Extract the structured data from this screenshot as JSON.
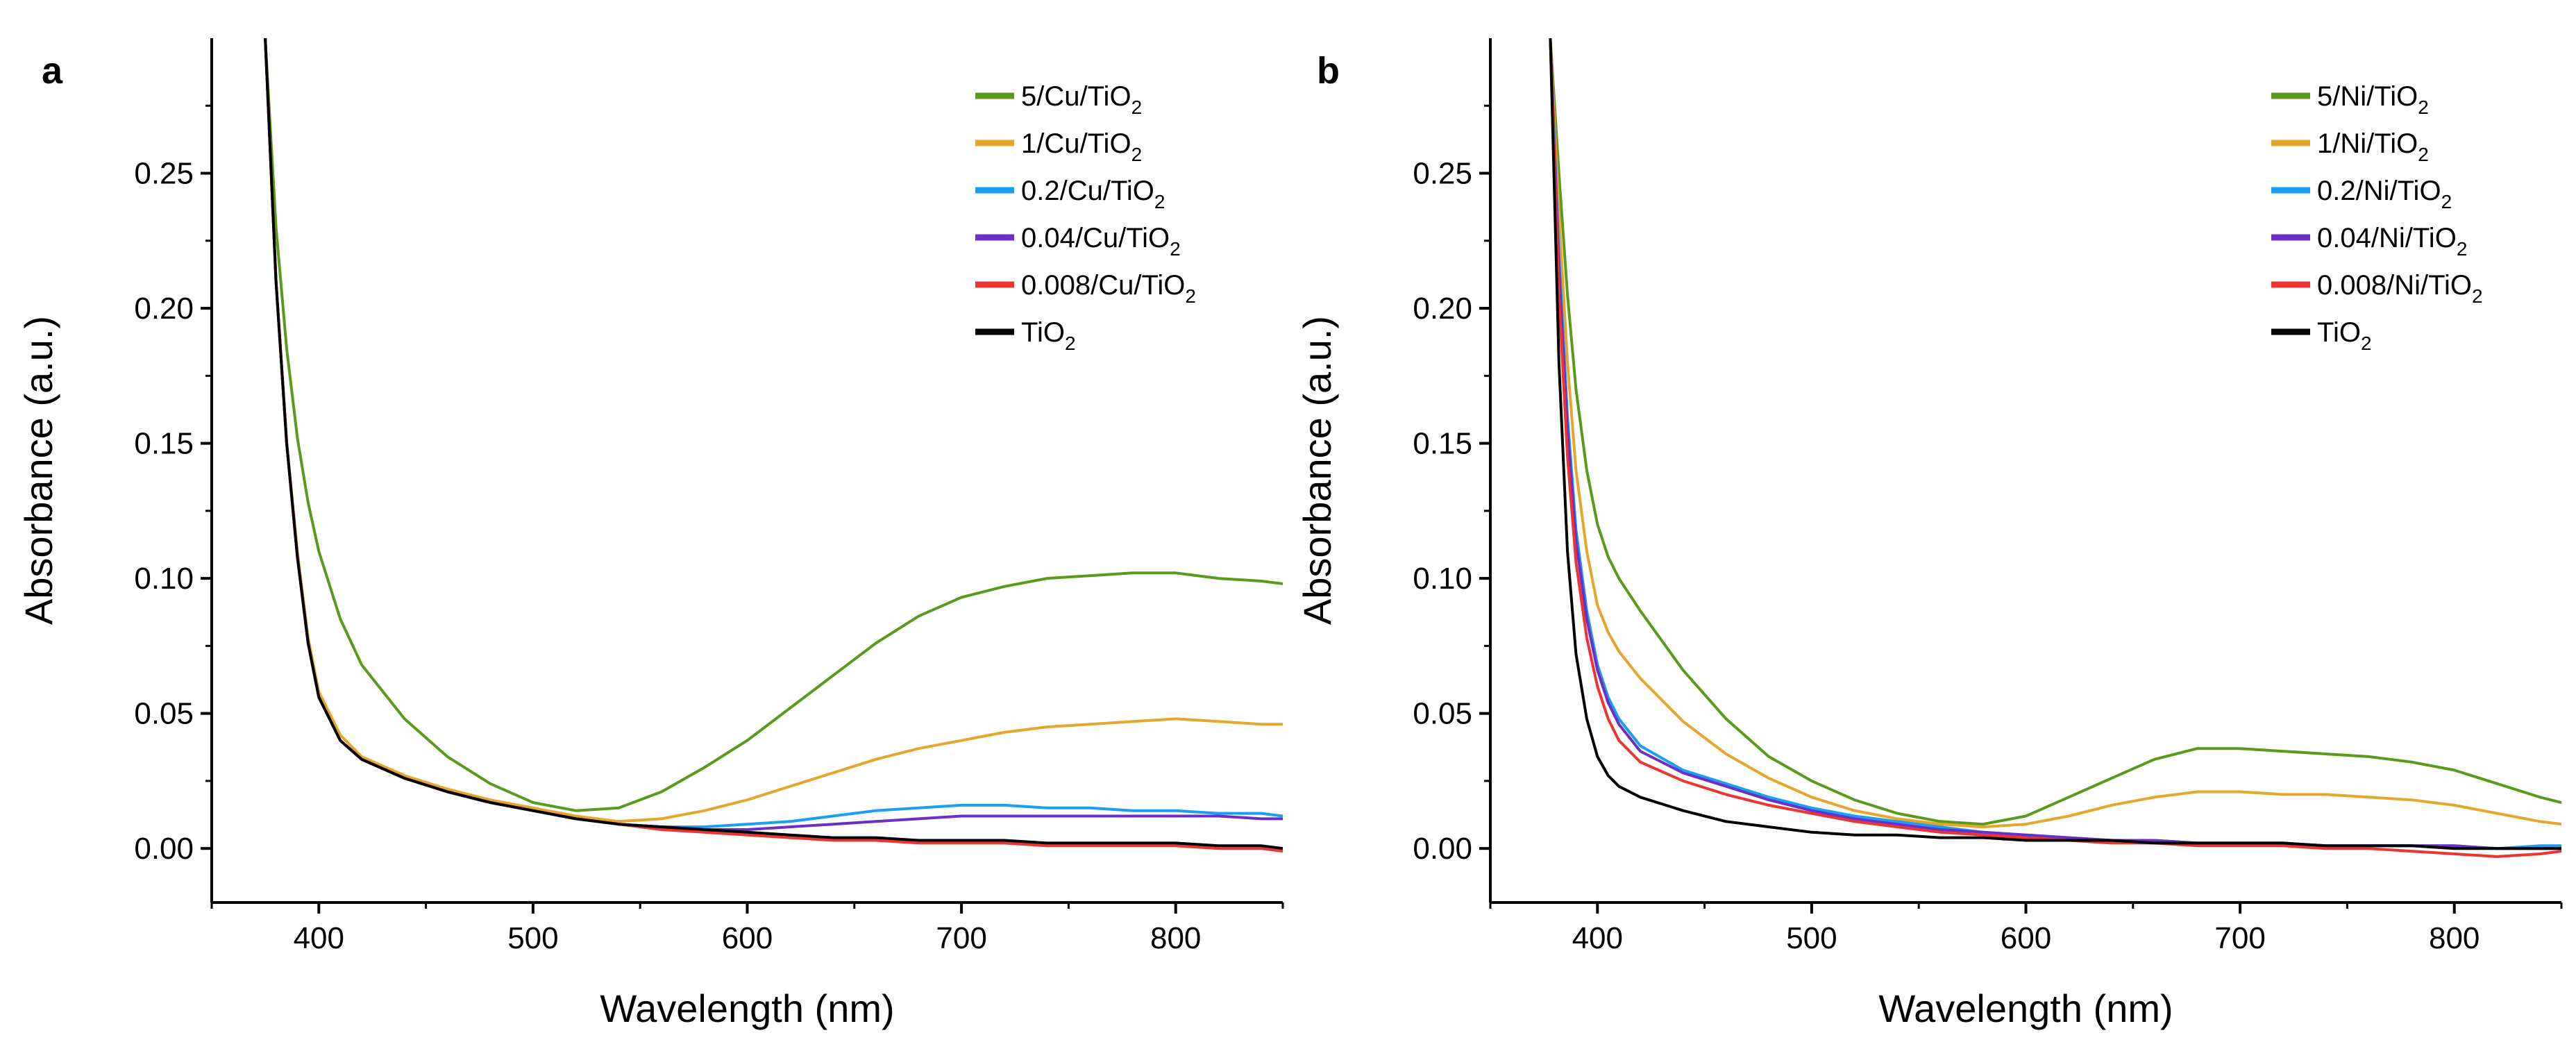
{
  "chart_data": [
    {
      "panel_label": "a",
      "type": "line",
      "xlabel": "Wavelength (nm)",
      "ylabel": "Absorbance (a.u.)",
      "xlim": [
        350,
        850
      ],
      "ylim": [
        -0.02,
        0.3
      ],
      "xticks": [
        400,
        500,
        600,
        700,
        800
      ],
      "xtick_labels": [
        "400",
        "500",
        "600",
        "700",
        "800"
      ],
      "yticks": [
        0.0,
        0.05,
        0.1,
        0.15,
        0.2,
        0.25
      ],
      "ytick_labels": [
        "0.00",
        "0.05",
        "0.10",
        "0.15",
        "0.20",
        "0.25"
      ],
      "legend_position": "top-right",
      "series": [
        {
          "name": "5/Cu/TiO2",
          "label_main": "5/Cu/TiO",
          "label_sub": "2",
          "color": "#5a9a1a",
          "x": [
            375,
            380,
            385,
            390,
            395,
            400,
            410,
            420,
            440,
            460,
            480,
            500,
            520,
            540,
            560,
            580,
            600,
            620,
            640,
            660,
            680,
            700,
            720,
            740,
            760,
            780,
            800,
            820,
            840,
            850
          ],
          "y": [
            0.3,
            0.23,
            0.185,
            0.152,
            0.128,
            0.11,
            0.085,
            0.068,
            0.048,
            0.034,
            0.024,
            0.017,
            0.014,
            0.015,
            0.021,
            0.03,
            0.04,
            0.052,
            0.064,
            0.076,
            0.086,
            0.093,
            0.097,
            0.1,
            0.101,
            0.102,
            0.102,
            0.1,
            0.099,
            0.098
          ]
        },
        {
          "name": "1/Cu/TiO2",
          "label_main": "1/Cu/TiO",
          "label_sub": "2",
          "color": "#e6a62c",
          "x": [
            375,
            380,
            385,
            390,
            395,
            400,
            410,
            420,
            440,
            460,
            480,
            500,
            520,
            540,
            560,
            580,
            600,
            620,
            640,
            660,
            680,
            700,
            720,
            740,
            760,
            780,
            800,
            820,
            840,
            850
          ],
          "y": [
            0.3,
            0.21,
            0.15,
            0.11,
            0.078,
            0.058,
            0.042,
            0.034,
            0.027,
            0.022,
            0.018,
            0.015,
            0.012,
            0.01,
            0.011,
            0.014,
            0.018,
            0.023,
            0.028,
            0.033,
            0.037,
            0.04,
            0.043,
            0.045,
            0.046,
            0.047,
            0.048,
            0.047,
            0.046,
            0.046
          ]
        },
        {
          "name": "0.2/Cu/TiO2",
          "label_main": "0.2/Cu/TiO",
          "label_sub": "2",
          "color": "#1a9ef0",
          "x": [
            375,
            380,
            385,
            390,
            395,
            400,
            410,
            420,
            440,
            460,
            480,
            500,
            520,
            540,
            560,
            580,
            600,
            620,
            640,
            660,
            680,
            700,
            720,
            740,
            760,
            780,
            800,
            820,
            840,
            850
          ],
          "y": [
            0.3,
            0.21,
            0.15,
            0.108,
            0.076,
            0.056,
            0.04,
            0.033,
            0.026,
            0.021,
            0.017,
            0.014,
            0.011,
            0.009,
            0.008,
            0.008,
            0.009,
            0.01,
            0.012,
            0.014,
            0.015,
            0.016,
            0.016,
            0.015,
            0.015,
            0.014,
            0.014,
            0.013,
            0.013,
            0.012
          ]
        },
        {
          "name": "0.04/Cu/TiO2",
          "label_main": "0.04/Cu/TiO",
          "label_sub": "2",
          "color": "#6b2fc8",
          "x": [
            375,
            380,
            385,
            390,
            395,
            400,
            410,
            420,
            440,
            460,
            480,
            500,
            520,
            540,
            560,
            580,
            600,
            620,
            640,
            660,
            680,
            700,
            720,
            740,
            760,
            780,
            800,
            820,
            840,
            850
          ],
          "y": [
            0.3,
            0.21,
            0.15,
            0.108,
            0.076,
            0.056,
            0.04,
            0.033,
            0.026,
            0.021,
            0.017,
            0.014,
            0.011,
            0.009,
            0.008,
            0.007,
            0.007,
            0.008,
            0.009,
            0.01,
            0.011,
            0.012,
            0.012,
            0.012,
            0.012,
            0.012,
            0.012,
            0.012,
            0.011,
            0.011
          ]
        },
        {
          "name": "0.008/Cu/TiO2",
          "label_main": "0.008/Cu/TiO",
          "label_sub": "2",
          "color": "#ee3333",
          "x": [
            375,
            380,
            385,
            390,
            395,
            400,
            410,
            420,
            440,
            460,
            480,
            500,
            520,
            540,
            560,
            580,
            600,
            620,
            640,
            660,
            680,
            700,
            720,
            740,
            760,
            780,
            800,
            820,
            840,
            850
          ],
          "y": [
            0.3,
            0.21,
            0.15,
            0.108,
            0.076,
            0.056,
            0.04,
            0.033,
            0.026,
            0.021,
            0.017,
            0.014,
            0.011,
            0.009,
            0.007,
            0.006,
            0.005,
            0.004,
            0.003,
            0.003,
            0.002,
            0.002,
            0.002,
            0.001,
            0.001,
            0.001,
            0.001,
            0.0,
            0.0,
            -0.001
          ]
        },
        {
          "name": "TiO2",
          "label_main": "TiO",
          "label_sub": "2",
          "color": "#000000",
          "x": [
            375,
            380,
            385,
            390,
            395,
            400,
            410,
            420,
            440,
            460,
            480,
            500,
            520,
            540,
            560,
            580,
            600,
            620,
            640,
            660,
            680,
            700,
            720,
            740,
            760,
            780,
            800,
            820,
            840,
            850
          ],
          "y": [
            0.3,
            0.21,
            0.15,
            0.108,
            0.076,
            0.056,
            0.04,
            0.033,
            0.026,
            0.021,
            0.017,
            0.014,
            0.011,
            0.009,
            0.008,
            0.007,
            0.006,
            0.005,
            0.004,
            0.004,
            0.003,
            0.003,
            0.003,
            0.002,
            0.002,
            0.002,
            0.002,
            0.001,
            0.001,
            0.0
          ]
        }
      ]
    },
    {
      "panel_label": "b",
      "type": "line",
      "xlabel": "Wavelength (nm)",
      "ylabel": "Absorbance (a.u.)",
      "xlim": [
        350,
        850
      ],
      "ylim": [
        -0.02,
        0.3
      ],
      "xticks": [
        400,
        500,
        600,
        700,
        800
      ],
      "xtick_labels": [
        "400",
        "500",
        "600",
        "700",
        "800"
      ],
      "yticks": [
        0.0,
        0.05,
        0.1,
        0.15,
        0.2,
        0.25
      ],
      "ytick_labels": [
        "0.00",
        "0.05",
        "0.10",
        "0.15",
        "0.20",
        "0.25"
      ],
      "legend_position": "top-right",
      "series": [
        {
          "name": "5/Ni/TiO2",
          "label_main": "5/Ni/TiO",
          "label_sub": "2",
          "color": "#5a9a1a",
          "x": [
            378,
            382,
            386,
            390,
            395,
            400,
            405,
            410,
            420,
            440,
            460,
            480,
            500,
            520,
            540,
            560,
            580,
            600,
            620,
            640,
            660,
            680,
            700,
            720,
            740,
            760,
            780,
            800,
            820,
            840,
            850
          ],
          "y": [
            0.3,
            0.25,
            0.205,
            0.17,
            0.14,
            0.12,
            0.108,
            0.1,
            0.088,
            0.066,
            0.048,
            0.034,
            0.025,
            0.018,
            0.013,
            0.01,
            0.009,
            0.012,
            0.019,
            0.026,
            0.033,
            0.037,
            0.037,
            0.036,
            0.035,
            0.034,
            0.032,
            0.029,
            0.024,
            0.019,
            0.017
          ]
        },
        {
          "name": "1/Ni/TiO2",
          "label_main": "1/Ni/TiO",
          "label_sub": "2",
          "color": "#e6a62c",
          "x": [
            378,
            382,
            386,
            390,
            395,
            400,
            405,
            410,
            420,
            440,
            460,
            480,
            500,
            520,
            540,
            560,
            580,
            600,
            620,
            640,
            660,
            680,
            700,
            720,
            740,
            760,
            780,
            800,
            820,
            840,
            850
          ],
          "y": [
            0.3,
            0.235,
            0.18,
            0.14,
            0.11,
            0.09,
            0.08,
            0.073,
            0.063,
            0.047,
            0.035,
            0.026,
            0.019,
            0.014,
            0.011,
            0.009,
            0.008,
            0.009,
            0.012,
            0.016,
            0.019,
            0.021,
            0.021,
            0.02,
            0.02,
            0.019,
            0.018,
            0.016,
            0.013,
            0.01,
            0.009
          ]
        },
        {
          "name": "0.2/Ni/TiO2",
          "label_main": "0.2/Ni/TiO",
          "label_sub": "2",
          "color": "#1a9ef0",
          "x": [
            378,
            382,
            386,
            390,
            395,
            400,
            405,
            410,
            420,
            440,
            460,
            480,
            500,
            520,
            540,
            560,
            580,
            600,
            620,
            640,
            660,
            680,
            700,
            720,
            740,
            760,
            780,
            800,
            820,
            840,
            850
          ],
          "y": [
            0.3,
            0.22,
            0.16,
            0.118,
            0.088,
            0.068,
            0.056,
            0.048,
            0.038,
            0.029,
            0.024,
            0.019,
            0.015,
            0.012,
            0.01,
            0.008,
            0.006,
            0.005,
            0.004,
            0.003,
            0.003,
            0.002,
            0.002,
            0.002,
            0.001,
            0.001,
            0.001,
            0.001,
            0.0,
            0.001,
            0.001
          ]
        },
        {
          "name": "0.04/Ni/TiO2",
          "label_main": "0.04/Ni/TiO",
          "label_sub": "2",
          "color": "#6b2fc8",
          "x": [
            378,
            382,
            386,
            390,
            395,
            400,
            405,
            410,
            420,
            440,
            460,
            480,
            500,
            520,
            540,
            560,
            580,
            600,
            620,
            640,
            660,
            680,
            700,
            720,
            740,
            760,
            780,
            800,
            820,
            840,
            850
          ],
          "y": [
            0.3,
            0.215,
            0.155,
            0.114,
            0.085,
            0.066,
            0.054,
            0.046,
            0.036,
            0.028,
            0.023,
            0.018,
            0.014,
            0.011,
            0.009,
            0.007,
            0.006,
            0.005,
            0.004,
            0.003,
            0.003,
            0.002,
            0.002,
            0.002,
            0.001,
            0.001,
            0.001,
            0.001,
            0.0,
            0.0,
            0.0
          ]
        },
        {
          "name": "0.008/Ni/TiO2",
          "label_main": "0.008/Ni/TiO",
          "label_sub": "2",
          "color": "#ee3333",
          "x": [
            378,
            382,
            386,
            390,
            395,
            400,
            405,
            410,
            420,
            440,
            460,
            480,
            500,
            520,
            540,
            560,
            580,
            600,
            620,
            640,
            660,
            680,
            700,
            720,
            740,
            760,
            780,
            800,
            820,
            840,
            850
          ],
          "y": [
            0.3,
            0.205,
            0.145,
            0.106,
            0.078,
            0.06,
            0.048,
            0.04,
            0.032,
            0.025,
            0.02,
            0.016,
            0.013,
            0.01,
            0.008,
            0.006,
            0.005,
            0.004,
            0.003,
            0.002,
            0.002,
            0.001,
            0.001,
            0.001,
            0.0,
            0.0,
            -0.001,
            -0.002,
            -0.003,
            -0.002,
            -0.001
          ]
        },
        {
          "name": "TiO2",
          "label_main": "TiO",
          "label_sub": "2",
          "color": "#000000",
          "x": [
            378,
            382,
            386,
            390,
            395,
            400,
            405,
            410,
            420,
            440,
            460,
            480,
            500,
            520,
            540,
            560,
            580,
            600,
            620,
            640,
            660,
            680,
            700,
            720,
            740,
            760,
            780,
            800,
            820,
            840,
            850
          ],
          "y": [
            0.3,
            0.18,
            0.11,
            0.072,
            0.048,
            0.034,
            0.027,
            0.023,
            0.019,
            0.014,
            0.01,
            0.008,
            0.006,
            0.005,
            0.005,
            0.004,
            0.004,
            0.003,
            0.003,
            0.003,
            0.002,
            0.002,
            0.002,
            0.002,
            0.001,
            0.001,
            0.001,
            0.0,
            0.0,
            0.0,
            0.0
          ]
        }
      ]
    }
  ]
}
